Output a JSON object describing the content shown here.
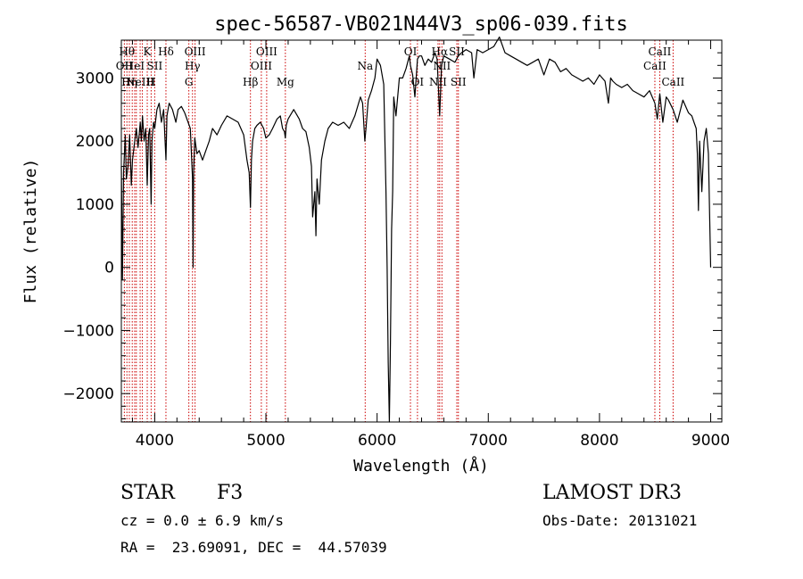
{
  "chart_data": {
    "type": "line",
    "title": "spec-56587-VB021N44V3_sp06-039.fits",
    "xlabel": "Wavelength (Å)",
    "ylabel": "Flux (relative)",
    "xlim": [
      3700,
      9100
    ],
    "ylim": [
      -2450,
      3600
    ],
    "xticks": [
      4000,
      5000,
      6000,
      7000,
      8000,
      9000
    ],
    "yticks": [
      -2000,
      -1000,
      0,
      1000,
      2000,
      3000
    ],
    "xtick_labels": [
      "4000",
      "5000",
      "6000",
      "7000",
      "8000",
      "9000"
    ],
    "ytick_labels": [
      "−2000",
      "−1000",
      "0",
      "1000",
      "2000",
      "3000"
    ],
    "grid": false,
    "line_color": "#000000",
    "marker_color": "#cc0000",
    "spectrum": {
      "x": [
        3700,
        3710,
        3720,
        3735,
        3745,
        3760,
        3775,
        3790,
        3800,
        3820,
        3835,
        3850,
        3870,
        3880,
        3890,
        3905,
        3920,
        3933,
        3945,
        3955,
        3968,
        3975,
        3990,
        4000,
        4020,
        4040,
        4060,
        4080,
        4101,
        4110,
        4130,
        4160,
        4190,
        4210,
        4240,
        4270,
        4300,
        4320,
        4340,
        4345,
        4350,
        4360,
        4380,
        4400,
        4430,
        4460,
        4490,
        4520,
        4560,
        4600,
        4650,
        4700,
        4750,
        4800,
        4830,
        4850,
        4861,
        4870,
        4880,
        4900,
        4920,
        4950,
        4980,
        5000,
        5030,
        5060,
        5100,
        5130,
        5150,
        5167,
        5175,
        5183,
        5200,
        5250,
        5300,
        5330,
        5360,
        5390,
        5410,
        5420,
        5440,
        5450,
        5460,
        5480,
        5500,
        5530,
        5560,
        5600,
        5650,
        5700,
        5750,
        5800,
        5850,
        5870,
        5890,
        5900,
        5920,
        5950,
        5980,
        6000,
        6030,
        6060,
        6080,
        6090,
        6100,
        6110,
        6120,
        6130,
        6140,
        6150,
        6170,
        6200,
        6230,
        6260,
        6290,
        6300,
        6320,
        6340,
        6363,
        6380,
        6400,
        6430,
        6460,
        6490,
        6520,
        6540,
        6563,
        6580,
        6600,
        6650,
        6700,
        6730,
        6760,
        6800,
        6850,
        6870,
        6900,
        6950,
        7000,
        7050,
        7100,
        7150,
        7200,
        7250,
        7300,
        7350,
        7400,
        7450,
        7500,
        7550,
        7600,
        7650,
        7700,
        7750,
        7800,
        7850,
        7900,
        7950,
        8000,
        8050,
        8080,
        8100,
        8120,
        8150,
        8200,
        8250,
        8300,
        8350,
        8400,
        8450,
        8498,
        8520,
        8542,
        8570,
        8600,
        8620,
        8662,
        8700,
        8750,
        8800,
        8830,
        8850,
        8870,
        8880,
        8890,
        8900,
        8920,
        8940,
        8960,
        8980,
        9000
      ],
      "y": [
        1600,
        -200,
        1500,
        2100,
        1400,
        1600,
        2100,
        1300,
        1700,
        2000,
        2200,
        1900,
        2300,
        2000,
        2400,
        2000,
        2200,
        1300,
        2100,
        2200,
        1000,
        2000,
        2300,
        2200,
        2500,
        2600,
        2300,
        2500,
        1700,
        2400,
        2600,
        2500,
        2300,
        2500,
        2550,
        2450,
        2300,
        2200,
        1400,
        0,
        1500,
        2050,
        1800,
        1850,
        1700,
        1850,
        2000,
        2200,
        2100,
        2250,
        2400,
        2350,
        2300,
        2100,
        1700,
        1500,
        950,
        1700,
        2000,
        2200,
        2250,
        2300,
        2200,
        2050,
        2100,
        2200,
        2350,
        2400,
        2200,
        2150,
        2050,
        2250,
        2350,
        2500,
        2350,
        2200,
        2150,
        1900,
        1600,
        800,
        1200,
        500,
        1400,
        1000,
        1700,
        2000,
        2200,
        2300,
        2250,
        2300,
        2200,
        2400,
        2700,
        2600,
        2000,
        2200,
        2650,
        2800,
        3000,
        3300,
        3200,
        2900,
        1200,
        0,
        -1500,
        -2450,
        -1200,
        600,
        1200,
        2700,
        2400,
        3000,
        3000,
        3150,
        3350,
        3200,
        3050,
        2700,
        3300,
        3350,
        3350,
        3200,
        3300,
        3250,
        3400,
        3300,
        2400,
        3200,
        3350,
        3300,
        3250,
        3350,
        3400,
        3450,
        3400,
        3000,
        3450,
        3400,
        3450,
        3500,
        3650,
        3400,
        3350,
        3300,
        3250,
        3200,
        3250,
        3300,
        3050,
        3300,
        3250,
        3100,
        3150,
        3050,
        3000,
        2950,
        3000,
        2900,
        3050,
        2950,
        2600,
        3000,
        2950,
        2900,
        2850,
        2900,
        2800,
        2750,
        2700,
        2800,
        2600,
        2350,
        2750,
        2300,
        2700,
        2650,
        2500,
        2300,
        2650,
        2450,
        2400,
        2300,
        2200,
        1800,
        900,
        2000,
        1200,
        2000,
        2200,
        1800,
        0
      ]
    },
    "lines": [
      {
        "x": 3727,
        "label": "OII",
        "row": 2
      },
      {
        "x": 3750,
        "label": "Hθ",
        "row": 1
      },
      {
        "x": 3772,
        "label": "Hη",
        "row": 3
      },
      {
        "x": 3798,
        "label": "",
        "row": 0
      },
      {
        "x": 3820,
        "label": "HeI",
        "row": 2
      },
      {
        "x": 3835,
        "label": "",
        "row": 0
      },
      {
        "x": 3869,
        "label": "NeIII",
        "row": 3
      },
      {
        "x": 3889,
        "label": "",
        "row": 0
      },
      {
        "x": 3933,
        "label": "K",
        "row": 1
      },
      {
        "x": 3968,
        "label": "H",
        "row": 3
      },
      {
        "x": 4000,
        "label": "SII",
        "row": 2
      },
      {
        "x": 4101,
        "label": "Hδ",
        "row": 1
      },
      {
        "x": 4307,
        "label": "G",
        "row": 3
      },
      {
        "x": 4340,
        "label": "Hγ",
        "row": 2
      },
      {
        "x": 4363,
        "label": "OIII",
        "row": 1
      },
      {
        "x": 4861,
        "label": "Hβ",
        "row": 3
      },
      {
        "x": 4959,
        "label": "OIII",
        "row": 2
      },
      {
        "x": 5007,
        "label": "OIII",
        "row": 1
      },
      {
        "x": 5175,
        "label": "Mg",
        "row": 3
      },
      {
        "x": 5893,
        "label": "Na",
        "row": 2
      },
      {
        "x": 6300,
        "label": "OI",
        "row": 1
      },
      {
        "x": 6363,
        "label": "OI",
        "row": 3
      },
      {
        "x": 6548,
        "label": "NII",
        "row": 3
      },
      {
        "x": 6563,
        "label": "Hα",
        "row": 1
      },
      {
        "x": 6583,
        "label": "NII",
        "row": 2
      },
      {
        "x": 6717,
        "label": "SII",
        "row": 1
      },
      {
        "x": 6731,
        "label": "SII",
        "row": 3
      },
      {
        "x": 8498,
        "label": "CaII",
        "row": 2
      },
      {
        "x": 8542,
        "label": "CaII",
        "row": 1
      },
      {
        "x": 8662,
        "label": "CaII",
        "row": 3
      }
    ]
  },
  "info": {
    "object_class": "STAR",
    "subclass": "F3",
    "survey": "LAMOST DR3",
    "cz": "cz = 0.0 ± 6.9 km/s",
    "obs_date": "Obs-Date: 20131021",
    "coords": "RA =  23.69091, DEC =  44.57039"
  }
}
